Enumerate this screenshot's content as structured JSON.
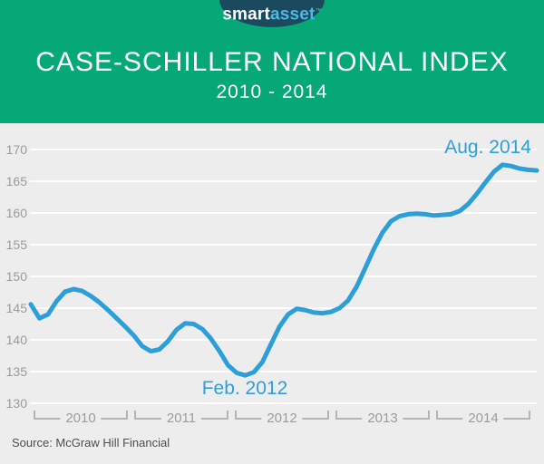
{
  "logo": {
    "part1": "smart",
    "part2": "asset",
    "tm": "™"
  },
  "header": {
    "title": "CASE-SCHILLER NATIONAL INDEX",
    "subtitle": "2010 - 2014"
  },
  "annotations": {
    "trough": "Feb. 2012",
    "peak": "Aug. 2014"
  },
  "source": "Source: McGraw Hill Financial",
  "colors": {
    "header_green": "#05a876",
    "logo_navy": "#1b4a5f",
    "logo_blue": "#4db7e6",
    "line_blue": "#2d9fd8",
    "panel_gray": "#ededed",
    "axis_gray": "#9b9b9b"
  },
  "chart_data": {
    "type": "line",
    "title": "CASE-SCHILLER NATIONAL INDEX",
    "subtitle": "2010 - 2014",
    "source": "Source: McGraw Hill Financial",
    "grid": true,
    "legend": false,
    "x_unit": "month",
    "x_start": "2010-01",
    "x_end": "2014-12",
    "categories": [
      "2010",
      "2011",
      "2012",
      "2013",
      "2014"
    ],
    "y_ticks": [
      170,
      165,
      160,
      155,
      150,
      145,
      140,
      135,
      130
    ],
    "ylim": [
      130,
      172
    ],
    "series": [
      {
        "name": "Case-Schiller National Index",
        "color": "#2d9fd8",
        "values": [
          145.6,
          143.4,
          144.0,
          146.1,
          147.6,
          148.0,
          147.7,
          146.9,
          145.9,
          144.7,
          143.4,
          142.1,
          140.7,
          139.0,
          138.2,
          138.5,
          139.8,
          141.6,
          142.6,
          142.5,
          141.7,
          140.2,
          138.2,
          136.0,
          134.8,
          134.4,
          134.9,
          136.5,
          139.3,
          142.1,
          144.0,
          144.9,
          144.7,
          144.3,
          144.2,
          144.4,
          145.0,
          146.2,
          148.4,
          151.3,
          154.3,
          156.9,
          158.7,
          159.5,
          159.8,
          159.9,
          159.8,
          159.6,
          159.7,
          159.8,
          160.3,
          161.4,
          163.0,
          164.8,
          166.5,
          167.6,
          167.4,
          167.0,
          166.8,
          166.7
        ]
      }
    ],
    "annotations": [
      {
        "label": "Feb. 2012",
        "x": "2012-02",
        "value": 134.4
      },
      {
        "label": "Aug. 2014",
        "x": "2014-08",
        "value": 167.6
      }
    ]
  }
}
